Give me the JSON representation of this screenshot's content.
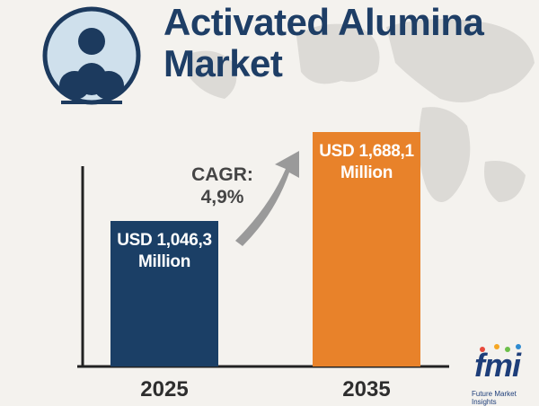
{
  "chart_data": {
    "type": "bar",
    "title": "Activated Alumina Market",
    "categories": [
      "2025",
      "2035"
    ],
    "values": [
      1046.3,
      1688.1
    ],
    "value_labels": [
      "USD 1,046,3 Million",
      "USD 1,688,1 Million"
    ],
    "colors": [
      "#1b3f66",
      "#e8822a"
    ],
    "annotation": "CAGR: 4,9%"
  },
  "logo": {
    "text": "fmi",
    "tagline": "Future Market Insights"
  }
}
